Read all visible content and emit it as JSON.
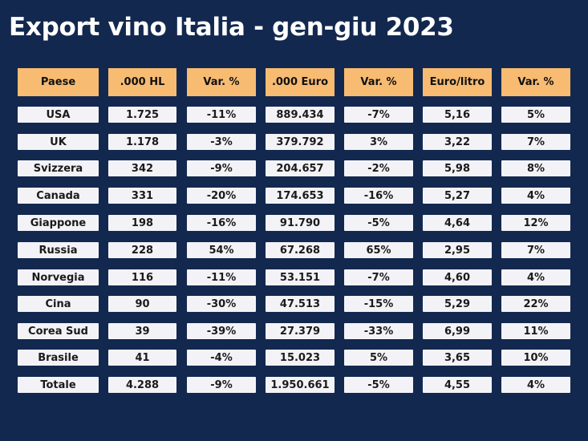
{
  "title": "Export vino Italia - gen-giu 2023",
  "table": {
    "headers": [
      "Paese",
      ".000 HL",
      "Var. %",
      ".000 Euro",
      "Var. %",
      "Euro/litro",
      "Var. %"
    ],
    "rows": [
      [
        "USA",
        "1.725",
        "-11%",
        "889.434",
        "-7%",
        "5,16",
        "5%"
      ],
      [
        "UK",
        "1.178",
        "-3%",
        "379.792",
        "3%",
        "3,22",
        "7%"
      ],
      [
        "Svizzera",
        "342",
        "-9%",
        "204.657",
        "-2%",
        "5,98",
        "8%"
      ],
      [
        "Canada",
        "331",
        "-20%",
        "174.653",
        "-16%",
        "5,27",
        "4%"
      ],
      [
        "Giappone",
        "198",
        "-16%",
        "91.790",
        "-5%",
        "4,64",
        "12%"
      ],
      [
        "Russia",
        "228",
        "54%",
        "67.268",
        "65%",
        "2,95",
        "7%"
      ],
      [
        "Norvegia",
        "116",
        "-11%",
        "53.151",
        "-7%",
        "4,60",
        "4%"
      ],
      [
        "Cina",
        "90",
        "-30%",
        "47.513",
        "-15%",
        "5,29",
        "22%"
      ],
      [
        "Corea Sud",
        "39",
        "-39%",
        "27.379",
        "-33%",
        "6,99",
        "11%"
      ],
      [
        "Brasile",
        "41",
        "-4%",
        "15.023",
        "5%",
        "3,65",
        "10%"
      ],
      [
        "Totale",
        "4.288",
        "-9%",
        "1.950.661",
        "-5%",
        "4,55",
        "4%"
      ]
    ]
  },
  "colors": {
    "background": "#13284f",
    "header_fill": "#f7bb72",
    "cell_fill": "#f3f3f7"
  }
}
